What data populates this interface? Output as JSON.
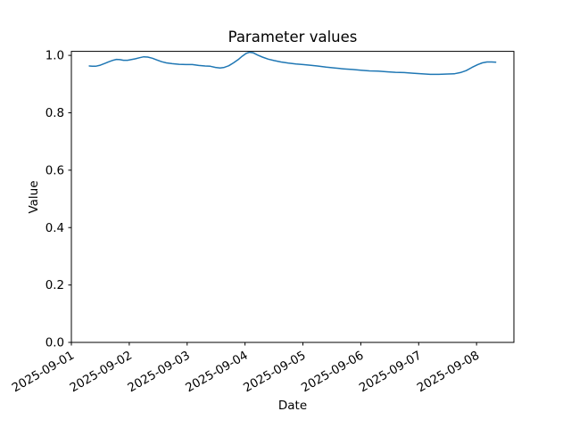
{
  "chart_data": {
    "type": "line",
    "title": "Parameter values",
    "xlabel": "Date",
    "ylabel": "Value",
    "x_tick_labels": [
      "2025-09-01",
      "2025-09-02",
      "2025-09-03",
      "2025-09-04",
      "2025-09-05",
      "2025-09-06",
      "2025-09-07",
      "2025-09-08"
    ],
    "x_tick_positions_days": [
      0,
      1,
      2,
      3,
      4,
      5,
      6,
      7
    ],
    "x_tick_rotation_deg": 30,
    "y_tick_labels": [
      "0.0",
      "0.2",
      "0.4",
      "0.6",
      "0.8",
      "1.0"
    ],
    "y_tick_values": [
      0.0,
      0.2,
      0.4,
      0.6,
      0.8,
      1.0
    ],
    "xlim_days": [
      0,
      7.645
    ],
    "ylim": [
      0,
      1.014
    ],
    "grid": false,
    "legend_position": "none",
    "line_color": "#1f77b4",
    "axis_color": "#000000",
    "background_color": "#ffffff",
    "series": [
      {
        "name": "Parameter values",
        "x_unit": "days_since_2025-09-01",
        "points": [
          [
            0.31,
            0.963
          ],
          [
            0.36,
            0.962
          ],
          [
            0.42,
            0.962
          ],
          [
            0.5,
            0.966
          ],
          [
            0.58,
            0.972
          ],
          [
            0.65,
            0.978
          ],
          [
            0.72,
            0.983
          ],
          [
            0.78,
            0.986
          ],
          [
            0.84,
            0.985
          ],
          [
            0.9,
            0.983
          ],
          [
            0.97,
            0.983
          ],
          [
            1.03,
            0.985
          ],
          [
            1.1,
            0.988
          ],
          [
            1.18,
            0.992
          ],
          [
            1.25,
            0.995
          ],
          [
            1.32,
            0.994
          ],
          [
            1.4,
            0.99
          ],
          [
            1.48,
            0.984
          ],
          [
            1.56,
            0.978
          ],
          [
            1.64,
            0.974
          ],
          [
            1.74,
            0.971
          ],
          [
            1.86,
            0.969
          ],
          [
            1.98,
            0.968
          ],
          [
            2.09,
            0.968
          ],
          [
            2.2,
            0.965
          ],
          [
            2.31,
            0.963
          ],
          [
            2.4,
            0.962
          ],
          [
            2.49,
            0.958
          ],
          [
            2.57,
            0.956
          ],
          [
            2.64,
            0.958
          ],
          [
            2.72,
            0.964
          ],
          [
            2.8,
            0.974
          ],
          [
            2.88,
            0.985
          ],
          [
            2.95,
            0.997
          ],
          [
            3.02,
            1.007
          ],
          [
            3.08,
            1.011
          ],
          [
            3.14,
            1.009
          ],
          [
            3.22,
            1.001
          ],
          [
            3.3,
            0.994
          ],
          [
            3.4,
            0.987
          ],
          [
            3.5,
            0.982
          ],
          [
            3.62,
            0.977
          ],
          [
            3.75,
            0.973
          ],
          [
            3.88,
            0.97
          ],
          [
            4.0,
            0.968
          ],
          [
            4.12,
            0.966
          ],
          [
            4.25,
            0.963
          ],
          [
            4.4,
            0.959
          ],
          [
            4.55,
            0.956
          ],
          [
            4.7,
            0.953
          ],
          [
            4.85,
            0.951
          ],
          [
            5.0,
            0.948
          ],
          [
            5.15,
            0.946
          ],
          [
            5.3,
            0.945
          ],
          [
            5.45,
            0.943
          ],
          [
            5.6,
            0.941
          ],
          [
            5.75,
            0.94
          ],
          [
            5.9,
            0.938
          ],
          [
            6.05,
            0.936
          ],
          [
            6.2,
            0.934
          ],
          [
            6.35,
            0.934
          ],
          [
            6.5,
            0.935
          ],
          [
            6.62,
            0.936
          ],
          [
            6.72,
            0.94
          ],
          [
            6.82,
            0.947
          ],
          [
            6.92,
            0.958
          ],
          [
            7.02,
            0.968
          ],
          [
            7.1,
            0.974
          ],
          [
            7.18,
            0.977
          ],
          [
            7.26,
            0.977
          ],
          [
            7.33,
            0.976
          ]
        ]
      }
    ]
  }
}
